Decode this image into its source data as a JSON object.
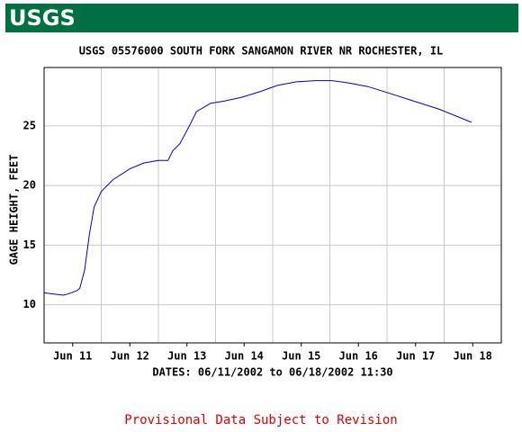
{
  "logo": "USGS",
  "chart_data": {
    "type": "line",
    "title": "USGS 05576000 SOUTH FORK SANGAMON RIVER NR ROCHESTER, IL",
    "y_label": "GAGE HEIGHT, FEET",
    "x_label": "DATES: 06/11/2002 to 06/18/2002 11:30",
    "annotation": "Provisional Data Subject to Revision",
    "x": [
      "2002-06-11T00:00",
      "2002-06-11T08:00",
      "2002-06-11T10:00",
      "2002-06-11T14:00",
      "2002-06-11T15:00",
      "2002-06-11T17:00",
      "2002-06-11T19:00",
      "2002-06-11T21:00",
      "2002-06-12T00:00",
      "2002-06-12T05:00",
      "2002-06-12T12:00",
      "2002-06-12T18:00",
      "2002-06-13T00:00",
      "2002-06-13T04:00",
      "2002-06-13T06:00",
      "2002-06-13T09:00",
      "2002-06-13T13:00",
      "2002-06-13T16:00",
      "2002-06-13T22:00",
      "2002-06-14T04:00",
      "2002-06-14T11:00",
      "2002-06-14T19:00",
      "2002-06-15T02:00",
      "2002-06-15T10:00",
      "2002-06-15T18:00",
      "2002-06-16T01:00",
      "2002-06-16T08:00",
      "2002-06-16T16:00",
      "2002-06-17T00:00",
      "2002-06-17T11:00",
      "2002-06-17T22:00",
      "2002-06-18T11:30"
    ],
    "series": [
      {
        "name": "Gage height",
        "color": "#0000cc",
        "values": [
          11.0,
          10.8,
          10.9,
          11.2,
          11.4,
          12.9,
          15.9,
          18.2,
          19.5,
          20.5,
          21.4,
          21.9,
          22.1,
          22.1,
          22.9,
          23.5,
          25.0,
          26.2,
          26.9,
          27.1,
          27.4,
          27.9,
          28.4,
          28.7,
          28.8,
          28.8,
          28.6,
          28.3,
          27.8,
          27.1,
          26.4,
          25.3
        ]
      }
    ],
    "xlim": [
      "2002-06-11T00:00",
      "2002-06-19T00:00"
    ],
    "xticks": [
      {
        "value": "2002-06-11T12:00",
        "label": "Jun 11"
      },
      {
        "value": "2002-06-12T12:00",
        "label": "Jun 12"
      },
      {
        "value": "2002-06-13T12:00",
        "label": "Jun 13"
      },
      {
        "value": "2002-06-14T12:00",
        "label": "Jun 14"
      },
      {
        "value": "2002-06-15T12:00",
        "label": "Jun 15"
      },
      {
        "value": "2002-06-16T12:00",
        "label": "Jun 16"
      },
      {
        "value": "2002-06-17T12:00",
        "label": "Jun 17"
      },
      {
        "value": "2002-06-18T12:00",
        "label": "Jun 18"
      }
    ],
    "xgrid": [
      "2002-06-12T00:00",
      "2002-06-13T00:00",
      "2002-06-14T00:00",
      "2002-06-15T00:00",
      "2002-06-16T00:00",
      "2002-06-17T00:00",
      "2002-06-18T00:00"
    ],
    "ylim": [
      6.8,
      29.9
    ],
    "yticks": [
      10,
      15,
      20,
      25
    ],
    "grid": true,
    "annotation_color": "#e00000"
  }
}
